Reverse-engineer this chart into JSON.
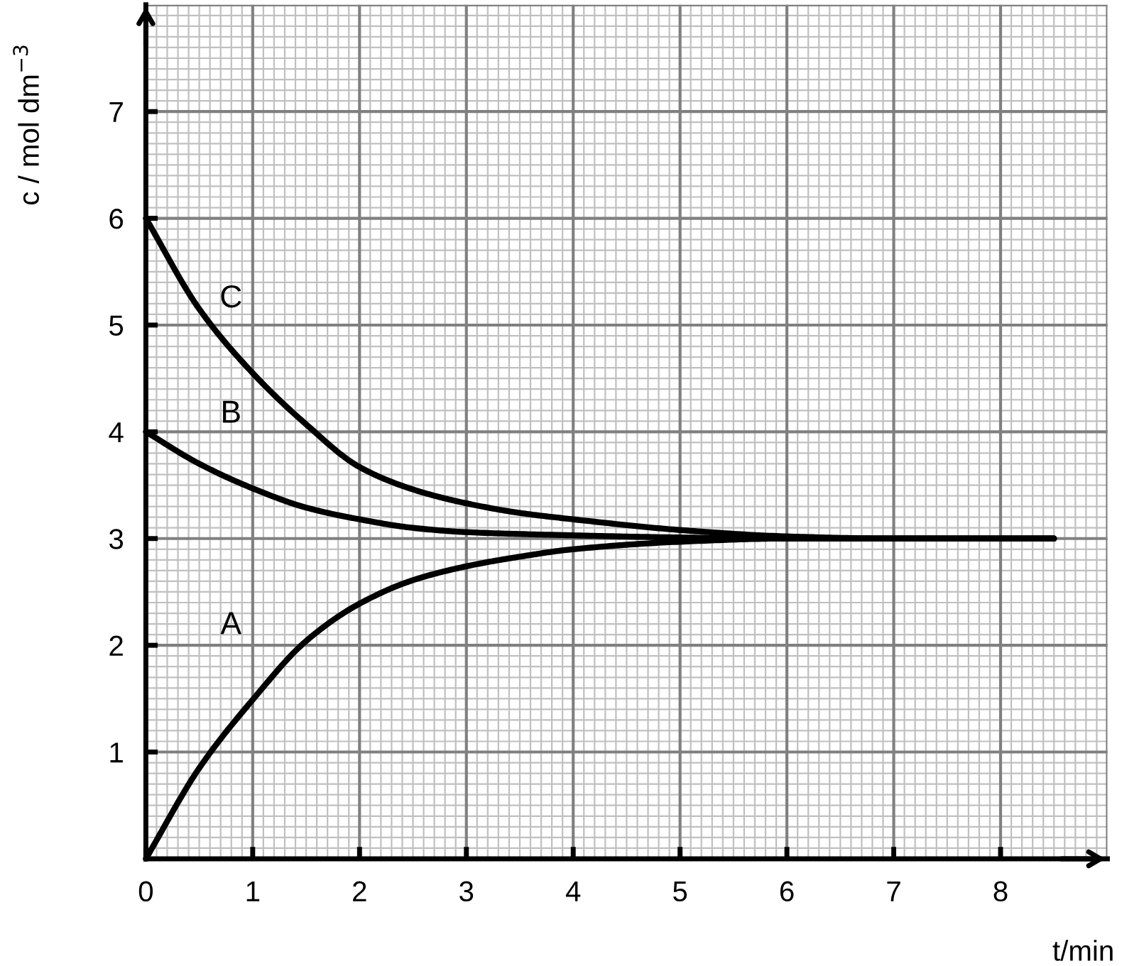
{
  "chart_data": {
    "type": "line",
    "xlabel": "t/min",
    "ylabel": "c / mol dm$^{−3}$",
    "xlim": [
      0,
      9
    ],
    "ylim": [
      0,
      8
    ],
    "xticks": [
      0,
      1,
      2,
      3,
      4,
      5,
      6,
      7,
      8
    ],
    "yticks": [
      1,
      2,
      3,
      4,
      5,
      6,
      7
    ],
    "grid": true,
    "marker": "none",
    "line_style": "solid",
    "series": [
      {
        "name": "A",
        "color": "#000000",
        "x": [
          0,
          0.5,
          1,
          1.5,
          2,
          2.5,
          3,
          3.5,
          4,
          5,
          6,
          7,
          8.5
        ],
        "values": [
          0,
          0.85,
          1.49,
          2.04,
          2.39,
          2.61,
          2.74,
          2.83,
          2.9,
          2.97,
          3.0,
          3.0,
          3.0
        ]
      },
      {
        "name": "B",
        "color": "#000000",
        "x": [
          0,
          0.5,
          1,
          1.5,
          2,
          2.5,
          3,
          4,
          5,
          6,
          7,
          8.5
        ],
        "values": [
          4.0,
          3.7,
          3.47,
          3.29,
          3.18,
          3.1,
          3.06,
          3.03,
          3.01,
          3.0,
          3.0,
          3.0
        ]
      },
      {
        "name": "C",
        "color": "#000000",
        "x": [
          0,
          0.5,
          1,
          1.5,
          2,
          2.5,
          3,
          3.5,
          4,
          5,
          6,
          7,
          8.5
        ],
        "values": [
          6.0,
          5.15,
          4.55,
          4.07,
          3.67,
          3.46,
          3.33,
          3.24,
          3.18,
          3.08,
          3.02,
          3.0,
          3.0
        ]
      }
    ]
  }
}
